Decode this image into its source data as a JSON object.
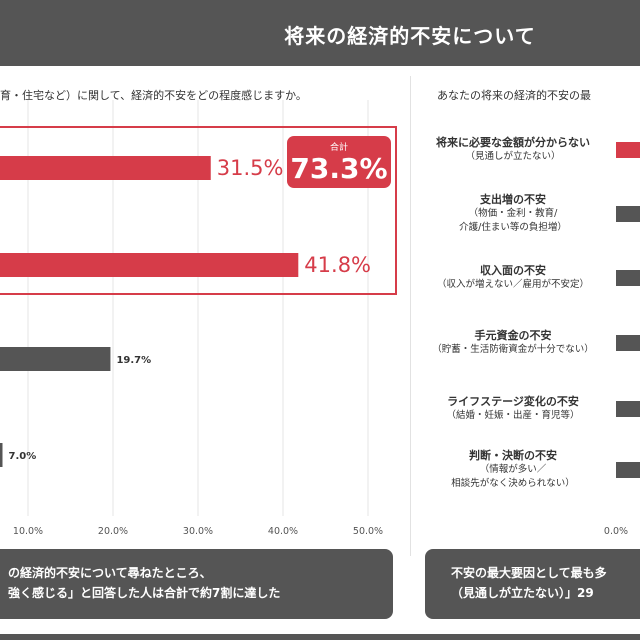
{
  "header": {
    "title": "将来の経済的不安について"
  },
  "left_panel": {
    "question": "育・住宅など）に関して、経済的不安をどの程度感じますか。",
    "total": {
      "label": "合計",
      "value": "73.3%"
    },
    "summary": [
      "の経済的不安について尋ねたところ、",
      "強く感じる」と回答した人は合計で約7割に達した"
    ]
  },
  "right_panel": {
    "question": "あなたの将来の経済的不安の最",
    "summary": [
      "不安の最大要因として最も多",
      "（見通しが立たない）」29"
    ]
  },
  "colors": {
    "red": "#d63c49",
    "gray": "#555555",
    "header": "#555555"
  },
  "chart_data": [
    {
      "type": "bar",
      "orientation": "horizontal",
      "categories": [
        "",
        "",
        "",
        ""
      ],
      "values": [
        31.5,
        41.8,
        19.7,
        7.0
      ],
      "value_labels": [
        "31.5%",
        "41.8%",
        "19.7%",
        "7.0%"
      ],
      "colors": [
        "#d63c49",
        "#d63c49",
        "#555555",
        "#555555"
      ],
      "xlim": [
        0,
        50
      ],
      "xticks": [
        10,
        20,
        30,
        40,
        50
      ],
      "xtick_labels": [
        "10.0%",
        "20.0%",
        "30.0%",
        "40.0%",
        "50.0%"
      ],
      "grid": true
    },
    {
      "type": "bar",
      "orientation": "horizontal",
      "categories": [
        {
          "main": "将来に必要な金額が分からない",
          "sub": [
            "（見通しが立たない）"
          ]
        },
        {
          "main": "支出増の不安",
          "sub": [
            "（物価・金利・教育/",
            "介護/住まい等の負担増）"
          ]
        },
        {
          "main": "収入面の不安",
          "sub": [
            "（収入が増えない／雇用が不安定）"
          ]
        },
        {
          "main": "手元資金の不安",
          "sub": [
            "（貯蓄・生活防衛資金が十分でない）"
          ]
        },
        {
          "main": "ライフステージ変化の不安",
          "sub": [
            "（結婚・妊娠・出産・育児等）"
          ]
        },
        {
          "main": "判断・決断の不安",
          "sub": [
            "（情報が多い／",
            "相談先がなく決められない）"
          ]
        }
      ],
      "colors": [
        "#d63c49",
        "#555555",
        "#555555",
        "#555555",
        "#555555",
        "#555555"
      ],
      "xtick_labels": [
        "0.0%"
      ]
    }
  ]
}
